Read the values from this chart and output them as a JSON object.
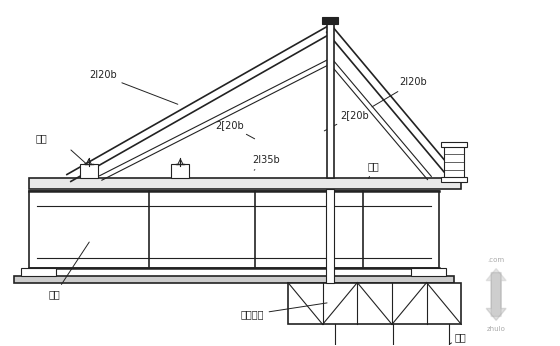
{
  "bg": "#ffffff",
  "lc": "#222222",
  "gc": "#888888",
  "figsize": [
    5.6,
    3.46
  ],
  "dpi": 100,
  "labels": {
    "2I20b_L": "2I20b",
    "2I20b_R": "2I20b",
    "2_20b_L": "2[20b",
    "2_20b_R": "2[20b",
    "2I35b": "2I35b",
    "walkboard": "走板",
    "anchor": "锐杆",
    "frame": "架体",
    "bottomform": "底模樱片",
    "hanger": "吐杆"
  }
}
